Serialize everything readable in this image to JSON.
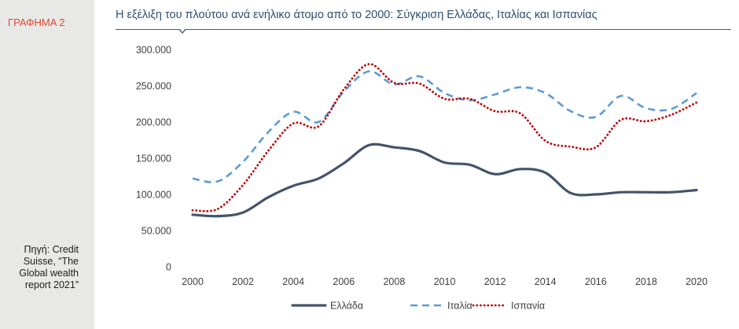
{
  "sidebar": {
    "figure_label": "ΓΡΑΦΗΜΑ 2",
    "source_lines": [
      "Πηγή: Credit",
      "Suisse, “The",
      "Global wealth",
      "report 2021”"
    ]
  },
  "chart_data": {
    "type": "line",
    "title": "Η εξέλιξη του πλούτου ανά ενήλικο άτομο από το 2000: Σύγκριση Ελλάδας, Ιταλίας και Ισπανίας",
    "xlabel": "",
    "ylabel": "",
    "x": [
      2000,
      2001,
      2002,
      2003,
      2004,
      2005,
      2006,
      2007,
      2008,
      2009,
      2010,
      2011,
      2012,
      2013,
      2014,
      2015,
      2016,
      2017,
      2018,
      2019,
      2020
    ],
    "x_tick_labels": [
      "2000",
      "2002",
      "2004",
      "2006",
      "2008",
      "2010",
      "2012",
      "2014",
      "2016",
      "2018",
      "2020"
    ],
    "y_tick_values": [
      0,
      50000,
      100000,
      150000,
      200000,
      250000,
      300000
    ],
    "y_tick_labels": [
      "0",
      "50.000",
      "100.000",
      "150.000",
      "200.000",
      "250.000",
      "300.000"
    ],
    "xlim": [
      2000,
      2020
    ],
    "ylim": [
      0,
      300000
    ],
    "grid": false,
    "legend_position": "bottom",
    "series": [
      {
        "name": "Ελλάδα",
        "color": "#44546a",
        "style": "solid",
        "values": [
          72000,
          70000,
          75000,
          96000,
          112000,
          122000,
          143000,
          168000,
          165000,
          160000,
          144000,
          141000,
          128000,
          135000,
          130000,
          102000,
          100000,
          103000,
          103000,
          103000,
          106000
        ]
      },
      {
        "name": "Ιταλία",
        "color": "#5b9bd5",
        "style": "dashed",
        "values": [
          122000,
          118000,
          145000,
          186000,
          214000,
          200000,
          242000,
          270000,
          252000,
          263000,
          240000,
          230000,
          238000,
          248000,
          240000,
          215000,
          207000,
          236000,
          219000,
          218000,
          240000
        ]
      },
      {
        "name": "Ισπανία",
        "color": "#c00000",
        "style": "dotted",
        "values": [
          78000,
          80000,
          113000,
          160000,
          198000,
          194000,
          245000,
          280000,
          254000,
          253000,
          232000,
          232000,
          215000,
          212000,
          174000,
          166000,
          165000,
          203000,
          201000,
          210000,
          227000
        ]
      }
    ]
  }
}
